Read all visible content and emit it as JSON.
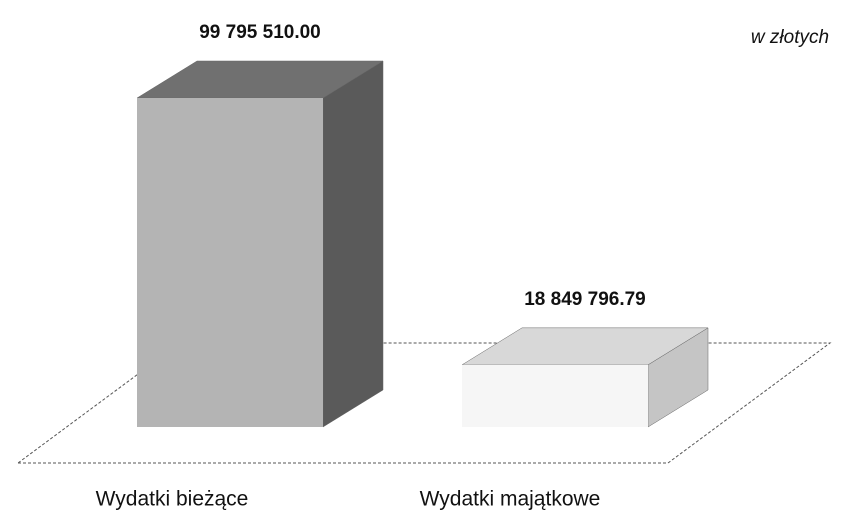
{
  "chart_data": {
    "type": "bar3d",
    "annotation": "w złotych",
    "categories": [
      "Wydatki bieżące",
      "Wydatki majątkowe"
    ],
    "values": [
      99795510.0,
      18849796.79
    ],
    "value_labels": [
      "99 795 510.00",
      "18 849 796.79"
    ],
    "colors": [
      "#b4b4b4",
      "#f6f6f6"
    ]
  }
}
